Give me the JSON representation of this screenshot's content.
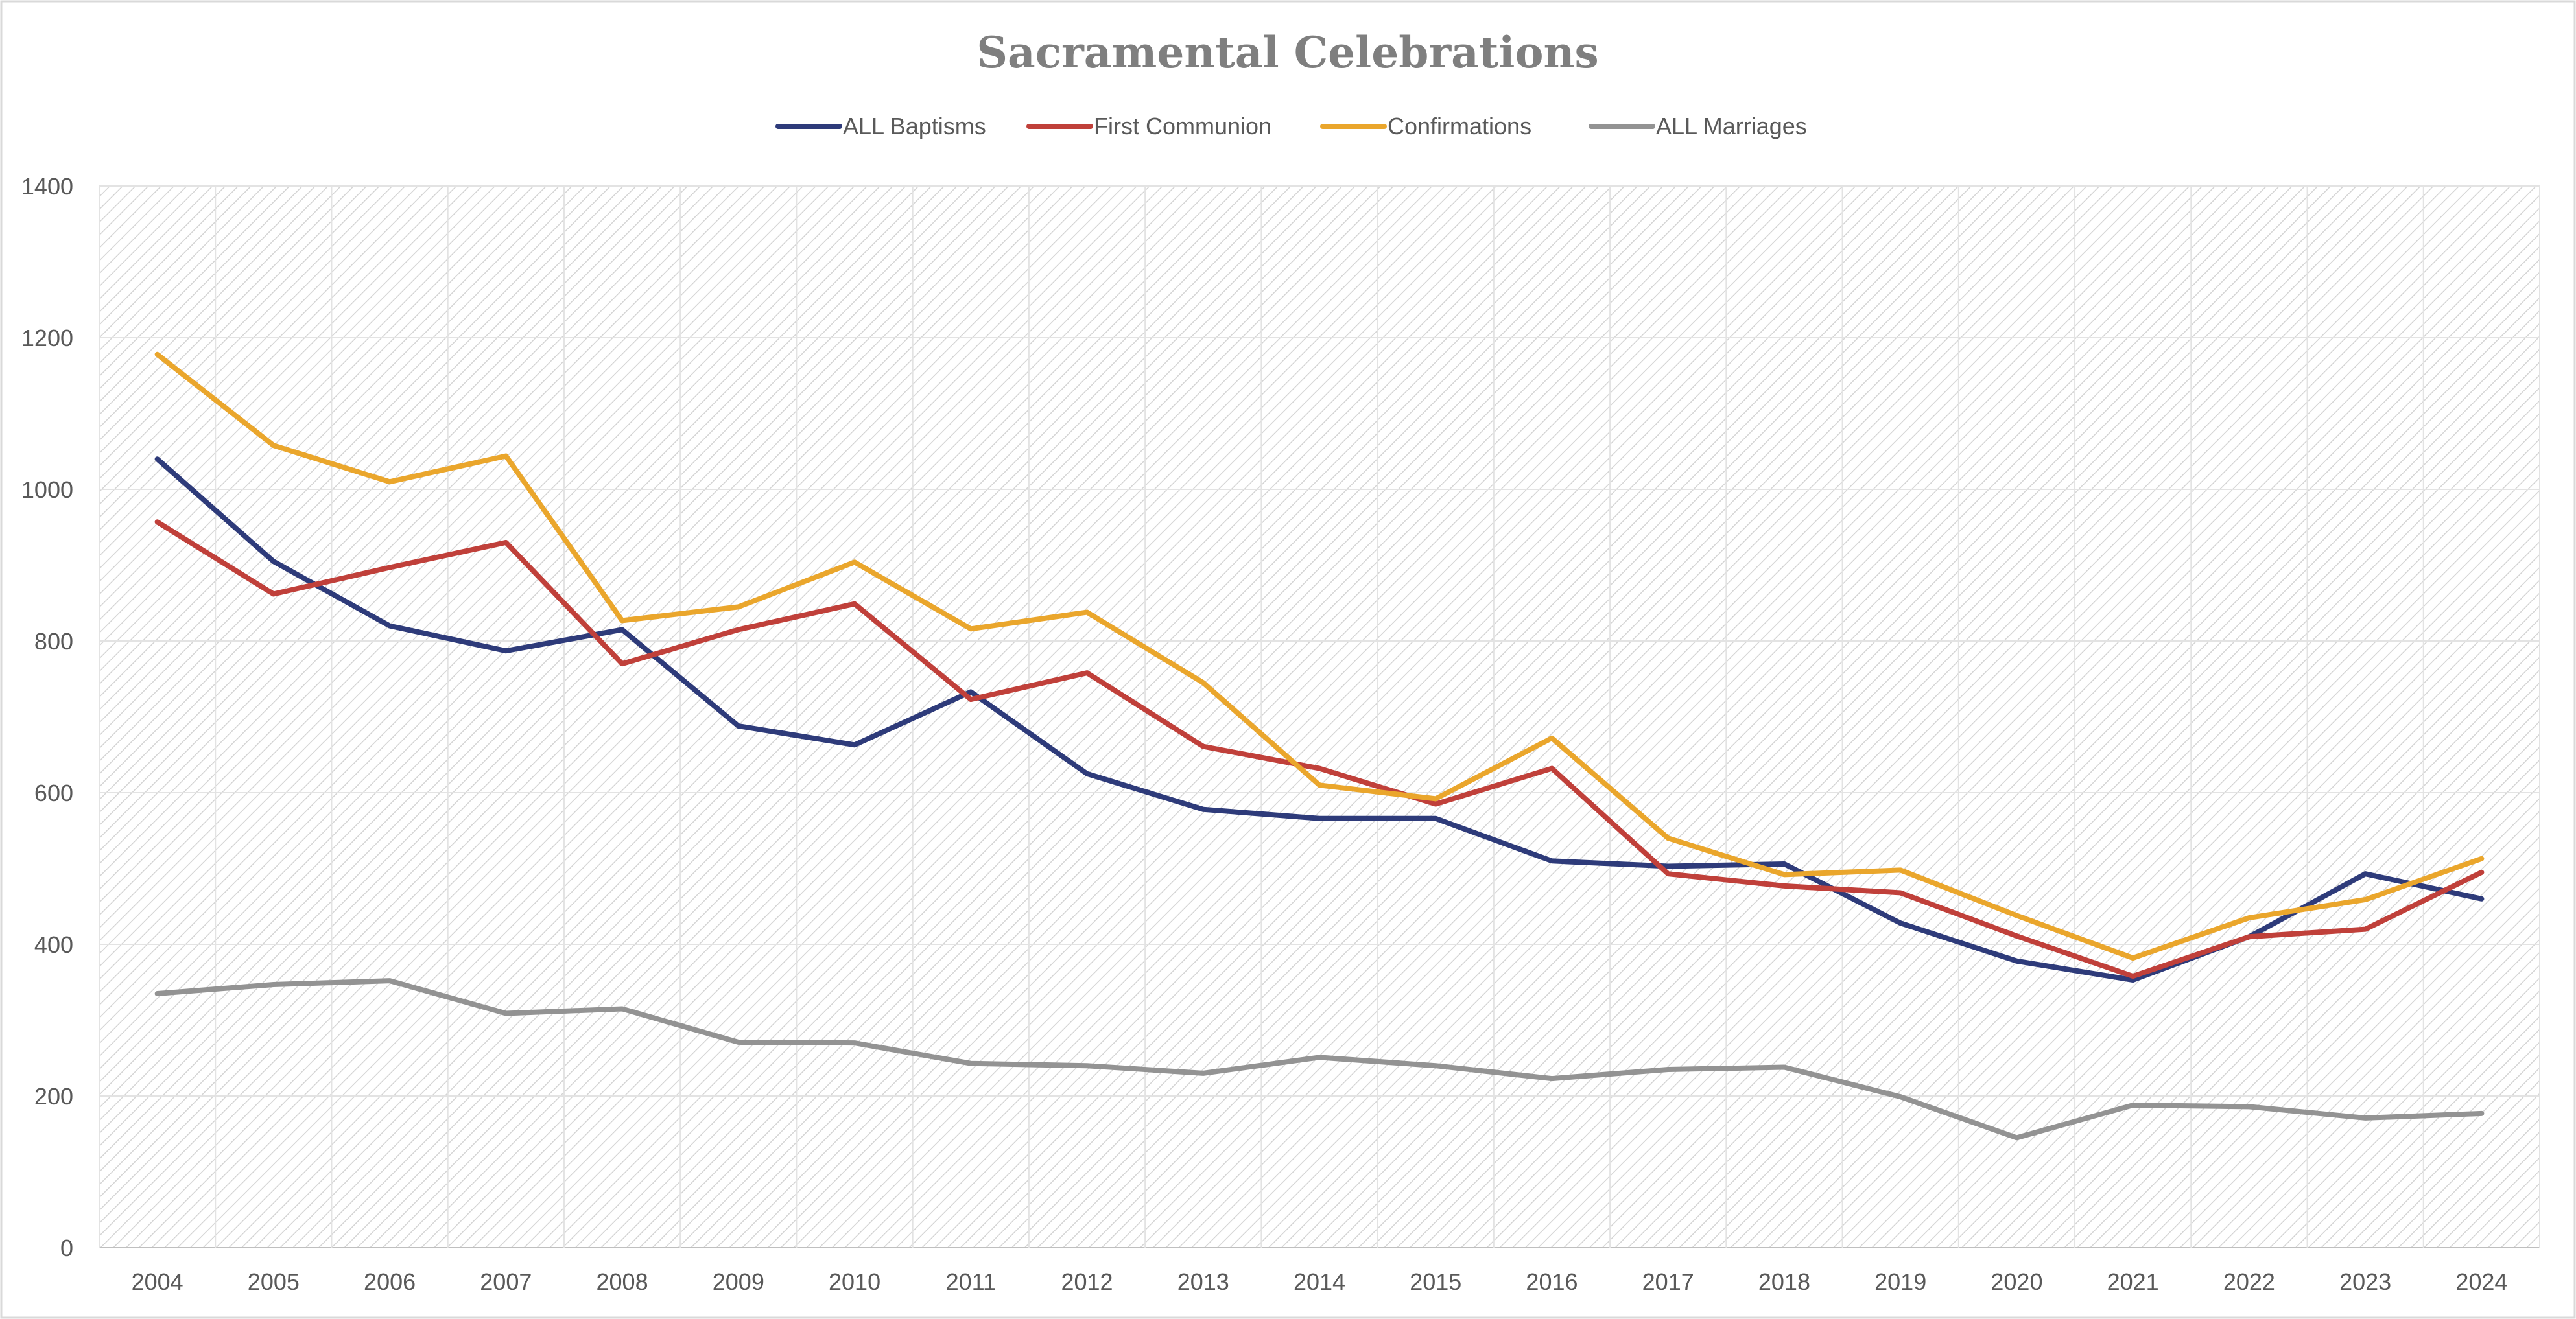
{
  "chart_data": {
    "type": "line",
    "title": "Sacramental Celebrations",
    "xlabel": "",
    "ylabel": "",
    "ylim": [
      0,
      1400
    ],
    "yticks": [
      0,
      200,
      400,
      600,
      800,
      1000,
      1200,
      1400
    ],
    "grid": true,
    "legend_position": "top",
    "categories": [
      "2004",
      "2005",
      "2006",
      "2007",
      "2008",
      "2009",
      "2010",
      "2011",
      "2012",
      "2013",
      "2014",
      "2015",
      "2016",
      "2017",
      "2018",
      "2019",
      "2020",
      "2021",
      "2022",
      "2023",
      "2024"
    ],
    "series": [
      {
        "name": "ALL Baptisms",
        "color": "#2e3b7a",
        "values": [
          1040,
          905,
          820,
          787,
          815,
          688,
          663,
          733,
          625,
          578,
          566,
          566,
          510,
          503,
          506,
          428,
          378,
          353,
          410,
          493,
          460
        ]
      },
      {
        "name": "First Communion",
        "color": "#c0403a",
        "values": [
          957,
          862,
          897,
          930,
          770,
          815,
          849,
          723,
          758,
          661,
          632,
          585,
          632,
          493,
          477,
          468,
          411,
          358,
          410,
          420,
          495
        ]
      },
      {
        "name": "Confirmations",
        "color": "#eaa62c",
        "values": [
          1178,
          1058,
          1010,
          1044,
          827,
          845,
          904,
          816,
          838,
          745,
          610,
          592,
          672,
          540,
          492,
          498,
          438,
          382,
          435,
          459,
          513
        ]
      },
      {
        "name": "ALL Marriages",
        "color": "#939393",
        "values": [
          335,
          347,
          352,
          309,
          315,
          271,
          270,
          243,
          240,
          230,
          251,
          240,
          223,
          235,
          238,
          199,
          145,
          188,
          186,
          171,
          177
        ]
      }
    ]
  }
}
